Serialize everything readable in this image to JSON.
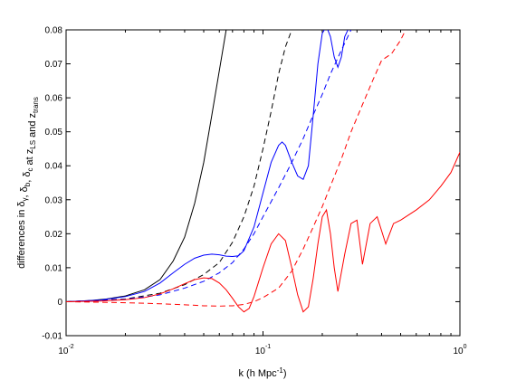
{
  "chart_data": {
    "type": "line",
    "xscale": "log",
    "xlim": [
      0.01,
      1
    ],
    "ylim": [
      -0.01,
      0.08
    ],
    "xlabel": {
      "main": "k (h Mpc",
      "sup": "-1",
      "close": ")"
    },
    "ylabel": {
      "parts": [
        {
          "t": "differences in δ",
          "sub": "γ"
        },
        {
          "t": ", δ",
          "sub": "b"
        },
        {
          "t": ", δ",
          "sub": "c"
        },
        {
          "t": " at z",
          "sub": "LS"
        },
        {
          "t": " and z",
          "sub": "trans"
        }
      ]
    },
    "y_ticks": [
      {
        "value": -0.01,
        "label": "-0.01"
      },
      {
        "value": 0,
        "label": "0"
      },
      {
        "value": 0.01,
        "label": "0.01"
      },
      {
        "value": 0.02,
        "label": "0.02"
      },
      {
        "value": 0.03,
        "label": "0.03"
      },
      {
        "value": 0.04,
        "label": "0.04"
      },
      {
        "value": 0.05,
        "label": "0.05"
      },
      {
        "value": 0.06,
        "label": "0.06"
      },
      {
        "value": 0.07,
        "label": "0.07"
      },
      {
        "value": 0.08,
        "label": "0.08"
      }
    ],
    "x_ticks": [
      {
        "value": 0.01,
        "base": "10",
        "exp": "-2"
      },
      {
        "value": 0.1,
        "base": "10",
        "exp": "-1"
      },
      {
        "value": 1,
        "base": "10",
        "exp": "0"
      }
    ],
    "series": [
      {
        "color": "#000000",
        "dash": "solid",
        "points": [
          [
            0.01,
            0
          ],
          [
            0.013,
            0.0003
          ],
          [
            0.016,
            0.0008
          ],
          [
            0.02,
            0.0017
          ],
          [
            0.025,
            0.0035
          ],
          [
            0.03,
            0.0065
          ],
          [
            0.035,
            0.012
          ],
          [
            0.04,
            0.019
          ],
          [
            0.045,
            0.029
          ],
          [
            0.05,
            0.041
          ],
          [
            0.055,
            0.055
          ],
          [
            0.06,
            0.068
          ],
          [
            0.065,
            0.08
          ]
        ]
      },
      {
        "color": "#000000",
        "dash": "dashed",
        "points": [
          [
            0.01,
            0
          ],
          [
            0.02,
            0.0008
          ],
          [
            0.03,
            0.0025
          ],
          [
            0.04,
            0.005
          ],
          [
            0.05,
            0.008
          ],
          [
            0.06,
            0.0115
          ],
          [
            0.07,
            0.0175
          ],
          [
            0.08,
            0.025
          ],
          [
            0.09,
            0.034
          ],
          [
            0.1,
            0.045
          ],
          [
            0.11,
            0.056
          ],
          [
            0.12,
            0.067
          ],
          [
            0.13,
            0.075
          ],
          [
            0.14,
            0.08
          ]
        ]
      },
      {
        "color": "#0000ff",
        "dash": "solid",
        "points": [
          [
            0.01,
            0
          ],
          [
            0.015,
            0.0005
          ],
          [
            0.02,
            0.0015
          ],
          [
            0.025,
            0.003
          ],
          [
            0.03,
            0.0055
          ],
          [
            0.035,
            0.0085
          ],
          [
            0.04,
            0.011
          ],
          [
            0.045,
            0.0128
          ],
          [
            0.05,
            0.0137
          ],
          [
            0.055,
            0.014
          ],
          [
            0.06,
            0.0138
          ],
          [
            0.065,
            0.0134
          ],
          [
            0.07,
            0.0133
          ],
          [
            0.075,
            0.0135
          ],
          [
            0.08,
            0.015
          ],
          [
            0.09,
            0.022
          ],
          [
            0.1,
            0.032
          ],
          [
            0.11,
            0.041
          ],
          [
            0.12,
            0.046
          ],
          [
            0.125,
            0.047
          ],
          [
            0.13,
            0.046
          ],
          [
            0.14,
            0.041
          ],
          [
            0.15,
            0.037
          ],
          [
            0.16,
            0.036
          ],
          [
            0.17,
            0.04
          ],
          [
            0.18,
            0.055
          ],
          [
            0.19,
            0.07
          ],
          [
            0.2,
            0.079
          ],
          [
            0.21,
            0.081
          ],
          [
            0.22,
            0.078
          ],
          [
            0.23,
            0.072
          ],
          [
            0.24,
            0.069
          ],
          [
            0.25,
            0.072
          ],
          [
            0.26,
            0.078
          ],
          [
            0.27,
            0.08
          ]
        ]
      },
      {
        "color": "#0000ff",
        "dash": "dashed",
        "points": [
          [
            0.01,
            0
          ],
          [
            0.02,
            0.0007
          ],
          [
            0.03,
            0.002
          ],
          [
            0.04,
            0.004
          ],
          [
            0.05,
            0.006
          ],
          [
            0.06,
            0.0085
          ],
          [
            0.07,
            0.0115
          ],
          [
            0.08,
            0.0155
          ],
          [
            0.09,
            0.02
          ],
          [
            0.1,
            0.025
          ],
          [
            0.12,
            0.0335
          ],
          [
            0.14,
            0.041
          ],
          [
            0.16,
            0.048
          ],
          [
            0.18,
            0.055
          ],
          [
            0.2,
            0.061
          ],
          [
            0.22,
            0.067
          ],
          [
            0.25,
            0.074
          ],
          [
            0.28,
            0.08
          ]
        ]
      },
      {
        "color": "#ff0000",
        "dash": "solid",
        "points": [
          [
            0.01,
            0
          ],
          [
            0.015,
            0.0002
          ],
          [
            0.02,
            0.0006
          ],
          [
            0.025,
            0.0012
          ],
          [
            0.03,
            0.0023
          ],
          [
            0.035,
            0.0038
          ],
          [
            0.04,
            0.0053
          ],
          [
            0.045,
            0.0065
          ],
          [
            0.05,
            0.007
          ],
          [
            0.055,
            0.0068
          ],
          [
            0.06,
            0.0055
          ],
          [
            0.065,
            0.0035
          ],
          [
            0.07,
            0.001
          ],
          [
            0.075,
            -0.0015
          ],
          [
            0.08,
            -0.003
          ],
          [
            0.085,
            -0.002
          ],
          [
            0.09,
            0.0015
          ],
          [
            0.1,
            0.01
          ],
          [
            0.11,
            0.017
          ],
          [
            0.12,
            0.02
          ],
          [
            0.13,
            0.018
          ],
          [
            0.14,
            0.01
          ],
          [
            0.15,
            0.002
          ],
          [
            0.16,
            -0.003
          ],
          [
            0.17,
            -0.0015
          ],
          [
            0.18,
            0.007
          ],
          [
            0.19,
            0.017
          ],
          [
            0.2,
            0.025
          ],
          [
            0.21,
            0.027
          ],
          [
            0.22,
            0.02
          ],
          [
            0.23,
            0.01
          ],
          [
            0.24,
            0.003
          ],
          [
            0.26,
            0.014
          ],
          [
            0.28,
            0.023
          ],
          [
            0.3,
            0.024
          ],
          [
            0.32,
            0.011
          ],
          [
            0.35,
            0.023
          ],
          [
            0.38,
            0.025
          ],
          [
            0.42,
            0.017
          ],
          [
            0.46,
            0.023
          ],
          [
            0.5,
            0.024
          ],
          [
            0.6,
            0.027
          ],
          [
            0.7,
            0.03
          ],
          [
            0.8,
            0.034
          ],
          [
            0.9,
            0.038
          ],
          [
            1.0,
            0.044
          ]
        ]
      },
      {
        "color": "#ff0000",
        "dash": "dashed",
        "points": [
          [
            0.01,
            0
          ],
          [
            0.02,
            -0.0003
          ],
          [
            0.03,
            -0.0006
          ],
          [
            0.04,
            -0.0009
          ],
          [
            0.05,
            -0.0012
          ],
          [
            0.06,
            -0.0013
          ],
          [
            0.07,
            -0.0012
          ],
          [
            0.08,
            -0.0008
          ],
          [
            0.09,
            0.0
          ],
          [
            0.1,
            0.0012
          ],
          [
            0.12,
            0.004
          ],
          [
            0.14,
            0.009
          ],
          [
            0.16,
            0.0155
          ],
          [
            0.18,
            0.022
          ],
          [
            0.2,
            0.028
          ],
          [
            0.22,
            0.034
          ],
          [
            0.25,
            0.042
          ],
          [
            0.28,
            0.05
          ],
          [
            0.32,
            0.058
          ],
          [
            0.36,
            0.065
          ],
          [
            0.4,
            0.071
          ],
          [
            0.45,
            0.073
          ],
          [
            0.5,
            0.077
          ],
          [
            0.53,
            0.08
          ]
        ]
      }
    ]
  }
}
